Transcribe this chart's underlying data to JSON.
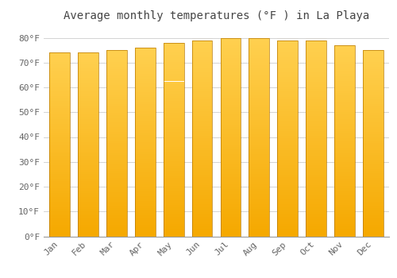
{
  "title": "Average monthly temperatures (°F ) in La Playa",
  "months": [
    "Jan",
    "Feb",
    "Mar",
    "Apr",
    "May",
    "Jun",
    "Jul",
    "Aug",
    "Sep",
    "Oct",
    "Nov",
    "Dec"
  ],
  "values": [
    74,
    74,
    75,
    76,
    78,
    79,
    80,
    80,
    79,
    79,
    77,
    75
  ],
  "bar_color_bottom": "#F5A800",
  "bar_color_top": "#FFD050",
  "bar_edge_color": "#B87800",
  "background_color": "#FFFFFF",
  "grid_color": "#CCCCCC",
  "ytick_labels": [
    "0°F",
    "10°F",
    "20°F",
    "30°F",
    "40°F",
    "50°F",
    "60°F",
    "70°F",
    "80°F"
  ],
  "ytick_values": [
    0,
    10,
    20,
    30,
    40,
    50,
    60,
    70,
    80
  ],
  "ylim": [
    0,
    84
  ],
  "title_fontsize": 10,
  "tick_fontsize": 8,
  "title_color": "#444444",
  "tick_color": "#666666",
  "bar_width": 0.72
}
